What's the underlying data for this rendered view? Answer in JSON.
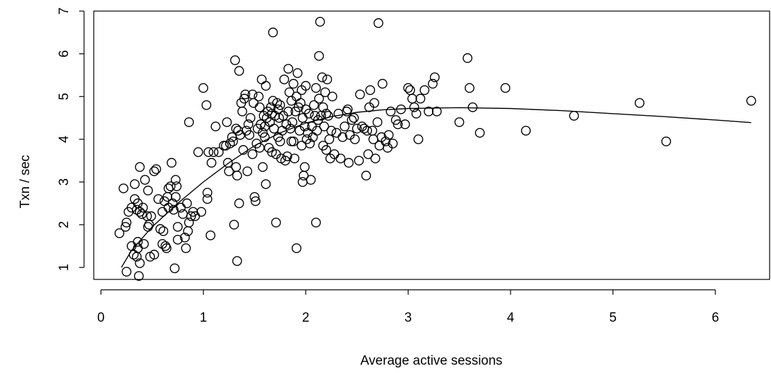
{
  "chart_data": {
    "type": "scatter",
    "title": "",
    "xlabel": "Average active sessions",
    "ylabel": "Txn / sec",
    "xlim": [
      -0.07,
      6.53
    ],
    "ylim": [
      0.72,
      7.0
    ],
    "xticks": [
      0,
      1,
      2,
      3,
      4,
      5,
      6
    ],
    "yticks": [
      1,
      2,
      3,
      4,
      5,
      6,
      7
    ],
    "xtick_labels": [
      "0",
      "1",
      "2",
      "3",
      "4",
      "5",
      "6"
    ],
    "ytick_labels": [
      "1",
      "2",
      "3",
      "4",
      "5",
      "6",
      "7"
    ],
    "grid": false,
    "marker": "open-circle",
    "points": [
      [
        0.18,
        1.8
      ],
      [
        0.22,
        2.85
      ],
      [
        0.24,
        1.95
      ],
      [
        0.25,
        2.05
      ],
      [
        0.27,
        2.3
      ],
      [
        0.25,
        0.9
      ],
      [
        0.3,
        2.4
      ],
      [
        0.3,
        1.5
      ],
      [
        0.32,
        1.3
      ],
      [
        0.33,
        2.95
      ],
      [
        0.33,
        2.6
      ],
      [
        0.35,
        1.25
      ],
      [
        0.36,
        1.6
      ],
      [
        0.36,
        1.45
      ],
      [
        0.37,
        0.8
      ],
      [
        0.38,
        1.1
      ],
      [
        0.35,
        2.35
      ],
      [
        0.36,
        2.5
      ],
      [
        0.38,
        2.3
      ],
      [
        0.38,
        3.35
      ],
      [
        0.4,
        2.25
      ],
      [
        0.41,
        2.4
      ],
      [
        0.42,
        1.55
      ],
      [
        0.43,
        3.05
      ],
      [
        0.45,
        2.2
      ],
      [
        0.46,
        1.95
      ],
      [
        0.47,
        2.0
      ],
      [
        0.46,
        2.8
      ],
      [
        0.48,
        1.25
      ],
      [
        0.49,
        2.2
      ],
      [
        0.52,
        1.3
      ],
      [
        0.52,
        3.25
      ],
      [
        0.54,
        3.3
      ],
      [
        0.56,
        2.6
      ],
      [
        0.58,
        1.9
      ],
      [
        0.6,
        2.3
      ],
      [
        0.6,
        1.55
      ],
      [
        0.61,
        1.85
      ],
      [
        0.62,
        2.55
      ],
      [
        0.63,
        1.5
      ],
      [
        0.64,
        1.45
      ],
      [
        0.65,
        2.65
      ],
      [
        0.66,
        2.85
      ],
      [
        0.66,
        2.4
      ],
      [
        0.68,
        2.9
      ],
      [
        0.69,
        3.45
      ],
      [
        0.7,
        2.5
      ],
      [
        0.71,
        2.35
      ],
      [
        0.72,
        0.98
      ],
      [
        0.73,
        2.65
      ],
      [
        0.73,
        3.05
      ],
      [
        0.74,
        2.9
      ],
      [
        0.75,
        1.65
      ],
      [
        0.75,
        1.95
      ],
      [
        0.78,
        2.4
      ],
      [
        0.8,
        2.25
      ],
      [
        0.82,
        1.7
      ],
      [
        0.83,
        1.45
      ],
      [
        0.84,
        2.5
      ],
      [
        0.85,
        1.85
      ],
      [
        0.86,
        2.05
      ],
      [
        0.86,
        4.4
      ],
      [
        0.88,
        2.2
      ],
      [
        0.9,
        2.3
      ],
      [
        0.92,
        2.2
      ],
      [
        0.95,
        3.7
      ],
      [
        0.98,
        2.3
      ],
      [
        1.0,
        5.2
      ],
      [
        1.03,
        4.8
      ],
      [
        1.04,
        2.75
      ],
      [
        1.04,
        2.6
      ],
      [
        1.05,
        3.7
      ],
      [
        1.07,
        1.75
      ],
      [
        1.08,
        3.45
      ],
      [
        1.1,
        3.7
      ],
      [
        1.12,
        4.3
      ],
      [
        1.15,
        3.7
      ],
      [
        1.2,
        3.85
      ],
      [
        1.22,
        3.85
      ],
      [
        1.23,
        4.4
      ],
      [
        1.24,
        3.45
      ],
      [
        1.25,
        3.25
      ],
      [
        1.26,
        3.9
      ],
      [
        1.28,
        4.05
      ],
      [
        1.29,
        3.95
      ],
      [
        1.3,
        2.0
      ],
      [
        1.31,
        5.85
      ],
      [
        1.32,
        3.35
      ],
      [
        1.32,
        4.25
      ],
      [
        1.33,
        1.15
      ],
      [
        1.33,
        3.15
      ],
      [
        1.34,
        4.2
      ],
      [
        1.35,
        2.5
      ],
      [
        1.35,
        5.6
      ],
      [
        1.36,
        4.1
      ],
      [
        1.37,
        4.85
      ],
      [
        1.38,
        4.65
      ],
      [
        1.39,
        3.75
      ],
      [
        1.4,
        4.95
      ],
      [
        1.41,
        5.05
      ],
      [
        1.42,
        4.2
      ],
      [
        1.43,
        3.25
      ],
      [
        1.44,
        4.35
      ],
      [
        1.45,
        4.1
      ],
      [
        1.46,
        4.5
      ],
      [
        1.48,
        3.65
      ],
      [
        1.48,
        5.05
      ],
      [
        1.49,
        4.85
      ],
      [
        1.5,
        2.65
      ],
      [
        1.51,
        2.55
      ],
      [
        1.52,
        3.9
      ],
      [
        1.53,
        4.25
      ],
      [
        1.54,
        5.0
      ],
      [
        1.55,
        3.8
      ],
      [
        1.55,
        4.75
      ],
      [
        1.56,
        4.35
      ],
      [
        1.57,
        5.4
      ],
      [
        1.58,
        3.35
      ],
      [
        1.58,
        4.15
      ],
      [
        1.59,
        4.55
      ],
      [
        1.6,
        4.05
      ],
      [
        1.6,
        4.3
      ],
      [
        1.61,
        5.25
      ],
      [
        1.61,
        2.95
      ],
      [
        1.62,
        4.5
      ],
      [
        1.63,
        4.65
      ],
      [
        1.64,
        3.8
      ],
      [
        1.65,
        4.4
      ],
      [
        1.66,
        4.75
      ],
      [
        1.67,
        4.6
      ],
      [
        1.67,
        3.7
      ],
      [
        1.68,
        4.9
      ],
      [
        1.68,
        6.5
      ],
      [
        1.69,
        4.25
      ],
      [
        1.7,
        4.55
      ],
      [
        1.71,
        2.05
      ],
      [
        1.71,
        3.65
      ],
      [
        1.72,
        4.85
      ],
      [
        1.73,
        4.7
      ],
      [
        1.73,
        4.05
      ],
      [
        1.74,
        4.5
      ],
      [
        1.75,
        3.95
      ],
      [
        1.75,
        4.8
      ],
      [
        1.76,
        3.55
      ],
      [
        1.77,
        4.2
      ],
      [
        1.78,
        4.55
      ],
      [
        1.79,
        5.4
      ],
      [
        1.8,
        3.5
      ],
      [
        1.81,
        4.35
      ],
      [
        1.82,
        3.6
      ],
      [
        1.83,
        4.65
      ],
      [
        1.83,
        5.65
      ],
      [
        1.84,
        5.1
      ],
      [
        1.85,
        4.25
      ],
      [
        1.86,
        3.95
      ],
      [
        1.86,
        4.9
      ],
      [
        1.87,
        4.4
      ],
      [
        1.88,
        5.3
      ],
      [
        1.88,
        3.95
      ],
      [
        1.89,
        3.55
      ],
      [
        1.9,
        4.65
      ],
      [
        1.91,
        5.0
      ],
      [
        1.91,
        1.45
      ],
      [
        1.92,
        5.55
      ],
      [
        1.93,
        4.75
      ],
      [
        1.94,
        4.2
      ],
      [
        1.95,
        4.85
      ],
      [
        1.96,
        3.85
      ],
      [
        1.96,
        5.15
      ],
      [
        1.97,
        3.0
      ],
      [
        1.97,
        4.5
      ],
      [
        1.98,
        3.15
      ],
      [
        1.99,
        3.35
      ],
      [
        1.99,
        4.3
      ],
      [
        2.0,
        4.7
      ],
      [
        2.0,
        5.25
      ],
      [
        2.01,
        4.0
      ],
      [
        2.02,
        4.15
      ],
      [
        2.03,
        4.6
      ],
      [
        2.04,
        3.9
      ],
      [
        2.05,
        3.05
      ],
      [
        2.06,
        4.3
      ],
      [
        2.07,
        4.05
      ],
      [
        2.08,
        4.8
      ],
      [
        2.09,
        4.55
      ],
      [
        2.1,
        5.2
      ],
      [
        2.1,
        2.05
      ],
      [
        2.11,
        4.2
      ],
      [
        2.12,
        4.45
      ],
      [
        2.13,
        4.95
      ],
      [
        2.13,
        5.95
      ],
      [
        2.14,
        6.75
      ],
      [
        2.15,
        4.55
      ],
      [
        2.16,
        5.45
      ],
      [
        2.17,
        3.85
      ],
      [
        2.17,
        4.75
      ],
      [
        2.18,
        4.3
      ],
      [
        2.19,
        5.1
      ],
      [
        2.2,
        4.6
      ],
      [
        2.2,
        3.75
      ],
      [
        2.21,
        5.4
      ],
      [
        2.22,
        4.55
      ],
      [
        2.23,
        4.0
      ],
      [
        2.24,
        3.55
      ],
      [
        2.25,
        4.2
      ],
      [
        2.26,
        5.0
      ],
      [
        2.28,
        3.65
      ],
      [
        2.3,
        4.15
      ],
      [
        2.32,
        4.6
      ],
      [
        2.34,
        3.55
      ],
      [
        2.36,
        4.05
      ],
      [
        2.38,
        4.3
      ],
      [
        2.4,
        4.65
      ],
      [
        2.41,
        4.7
      ],
      [
        2.42,
        3.45
      ],
      [
        2.43,
        4.1
      ],
      [
        2.45,
        4.45
      ],
      [
        2.47,
        4.5
      ],
      [
        2.48,
        4.0
      ],
      [
        2.5,
        4.25
      ],
      [
        2.52,
        3.5
      ],
      [
        2.53,
        5.05
      ],
      [
        2.55,
        4.3
      ],
      [
        2.57,
        4.25
      ],
      [
        2.59,
        3.15
      ],
      [
        2.6,
        4.2
      ],
      [
        2.61,
        3.65
      ],
      [
        2.62,
        4.75
      ],
      [
        2.63,
        5.15
      ],
      [
        2.65,
        4.2
      ],
      [
        2.66,
        4.0
      ],
      [
        2.67,
        4.85
      ],
      [
        2.68,
        3.55
      ],
      [
        2.7,
        4.4
      ],
      [
        2.71,
        6.72
      ],
      [
        2.72,
        3.85
      ],
      [
        2.74,
        4.05
      ],
      [
        2.75,
        5.3
      ],
      [
        2.78,
        3.95
      ],
      [
        2.8,
        3.8
      ],
      [
        2.81,
        4.1
      ],
      [
        2.83,
        4.65
      ],
      [
        2.85,
        3.9
      ],
      [
        2.88,
        4.45
      ],
      [
        2.9,
        4.35
      ],
      [
        2.93,
        4.7
      ],
      [
        2.97,
        4.35
      ],
      [
        3.0,
        5.2
      ],
      [
        3.02,
        5.15
      ],
      [
        3.04,
        4.95
      ],
      [
        3.06,
        4.75
      ],
      [
        3.08,
        4.6
      ],
      [
        3.1,
        4.0
      ],
      [
        3.12,
        4.95
      ],
      [
        3.16,
        5.15
      ],
      [
        3.2,
        4.65
      ],
      [
        3.24,
        5.3
      ],
      [
        3.26,
        5.45
      ],
      [
        3.28,
        4.65
      ],
      [
        3.5,
        4.4
      ],
      [
        3.58,
        5.9
      ],
      [
        3.6,
        5.2
      ],
      [
        3.63,
        4.75
      ],
      [
        3.7,
        4.15
      ],
      [
        3.95,
        5.2
      ],
      [
        4.15,
        4.2
      ],
      [
        4.62,
        4.55
      ],
      [
        5.26,
        4.85
      ],
      [
        5.52,
        3.95
      ],
      [
        6.35,
        4.9
      ]
    ],
    "fit_line": [
      [
        0.2,
        1.0
      ],
      [
        0.3,
        1.4
      ],
      [
        0.5,
        1.95
      ],
      [
        0.75,
        2.5
      ],
      [
        1.0,
        3.0
      ],
      [
        1.25,
        3.45
      ],
      [
        1.5,
        3.85
      ],
      [
        1.75,
        4.15
      ],
      [
        2.0,
        4.38
      ],
      [
        2.25,
        4.53
      ],
      [
        2.5,
        4.63
      ],
      [
        2.75,
        4.69
      ],
      [
        3.0,
        4.72
      ],
      [
        3.5,
        4.74
      ],
      [
        4.0,
        4.72
      ],
      [
        4.5,
        4.67
      ],
      [
        5.0,
        4.6
      ],
      [
        5.5,
        4.53
      ],
      [
        6.0,
        4.45
      ],
      [
        6.35,
        4.39
      ]
    ]
  }
}
